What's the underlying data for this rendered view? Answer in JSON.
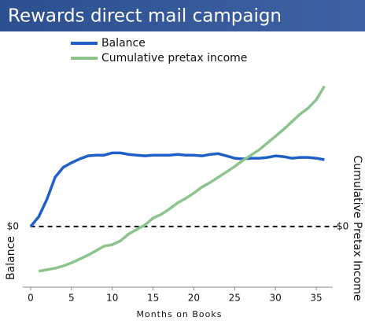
{
  "chart_data": {
    "type": "line",
    "title": "Rewards direct mail campaign",
    "x_label": "Months on Books",
    "y_label": "Balance",
    "y2_label": "Cumulative Pretax Income",
    "x": [
      0,
      1,
      2,
      3,
      4,
      5,
      6,
      7,
      8,
      9,
      10,
      11,
      12,
      13,
      14,
      15,
      16,
      17,
      18,
      19,
      20,
      21,
      22,
      23,
      24,
      25,
      26,
      27,
      28,
      29,
      30,
      31,
      32,
      33,
      34,
      35,
      36
    ],
    "series": [
      {
        "name": "Balance",
        "color": "#1f5fc8",
        "axis": "y",
        "values": [
          0,
          13,
          36,
          65,
          78,
          84,
          89,
          93,
          94,
          94,
          97,
          97,
          95,
          94,
          93,
          94,
          94,
          94,
          95,
          94,
          94,
          93,
          95,
          96,
          93,
          90,
          89,
          90,
          90,
          91,
          93,
          92,
          90,
          91,
          91,
          90,
          88
        ]
      },
      {
        "name": "Cumulative pretax income",
        "color": "#8cc48c",
        "axis": "y2",
        "values": [
          null,
          -59,
          -57,
          -55,
          -52,
          -48,
          -43,
          -38,
          -32,
          -26,
          -24,
          -19,
          -10,
          -4,
          2,
          11,
          16,
          23,
          31,
          37,
          44,
          52,
          58,
          65,
          72,
          79,
          87,
          94,
          101,
          110,
          119,
          128,
          138,
          148,
          156,
          167,
          185
        ]
      }
    ],
    "xlim": [
      -1,
      37
    ],
    "xticks": [
      0,
      5,
      10,
      15,
      20,
      25,
      30,
      35
    ],
    "ylim": [
      -80,
      200
    ],
    "yticks": [
      {
        "value": 0,
        "label": "$0"
      }
    ],
    "y2lim": [
      -80,
      200
    ],
    "y2ticks": [
      {
        "value": 0,
        "label": "$0"
      }
    ]
  }
}
